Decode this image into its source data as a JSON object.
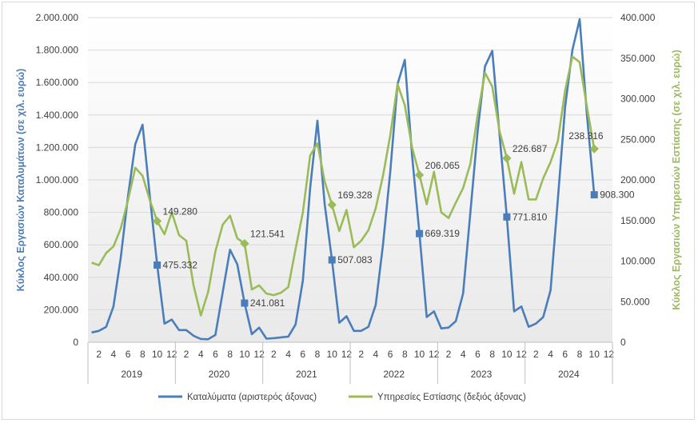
{
  "chart_data": {
    "type": "line",
    "title": "",
    "years": [
      "2019",
      "2020",
      "2021",
      "2022",
      "2023",
      "2024"
    ],
    "month_ticks": [
      "2",
      "4",
      "6",
      "8",
      "10",
      "12"
    ],
    "y_left": {
      "label": "Κύκλος Εργασιών Καταλυμάτων (σε χιλ. ευρώ)",
      "min": 0,
      "max": 2000000,
      "step": 200000,
      "ticks": [
        "0",
        "200.000",
        "400.000",
        "600.000",
        "800.000",
        "1.000.000",
        "1.200.000",
        "1.400.000",
        "1.600.000",
        "1.800.000",
        "2.000.000"
      ]
    },
    "y_right": {
      "label": "Κύκλος Εργασιών Υπηρεσιών Εστίασης (σε χιλ. ευρώ)",
      "min": 0,
      "max": 400000,
      "step": 50000,
      "ticks": [
        "0",
        "50.000",
        "100.000",
        "150.000",
        "200.000",
        "250.000",
        "300.000",
        "350.000",
        "400.000"
      ]
    },
    "gridlines": true,
    "legend_position": "bottom",
    "series": [
      {
        "name": "Καταλύματα (αριστερός άξονας)",
        "axis": "left",
        "color": "#4a7ebb",
        "values": [
          60000,
          70000,
          95000,
          220000,
          520000,
          900000,
          1220000,
          1340000,
          900000,
          475332,
          115000,
          140000,
          75000,
          75000,
          40000,
          20000,
          18000,
          45000,
          310000,
          570000,
          480000,
          241081,
          50000,
          90000,
          22000,
          25000,
          30000,
          35000,
          110000,
          380000,
          950000,
          1365000,
          850000,
          507083,
          120000,
          160000,
          70000,
          70000,
          95000,
          230000,
          600000,
          1050000,
          1590000,
          1740000,
          1150000,
          669319,
          155000,
          190000,
          85000,
          90000,
          130000,
          300000,
          800000,
          1300000,
          1700000,
          1795000,
          1280000,
          771810,
          190000,
          220000,
          95000,
          115000,
          155000,
          320000,
          880000,
          1450000,
          1800000,
          1990000,
          1400000,
          908300
        ],
        "markers": [
          {
            "month_index": 9,
            "label": "475.332"
          },
          {
            "month_index": 21,
            "label": "241.081"
          },
          {
            "month_index": 33,
            "label": "507.083"
          },
          {
            "month_index": 45,
            "label": "669.319"
          },
          {
            "month_index": 57,
            "label": "771.810"
          },
          {
            "month_index": 69,
            "label": "908.300"
          }
        ]
      },
      {
        "name": "Υπηρεσίες Εστίασης (δεξιός άξονας)",
        "axis": "right",
        "color": "#9bbb59",
        "values": [
          98000,
          95000,
          110000,
          118000,
          140000,
          175000,
          215000,
          205000,
          175000,
          149280,
          133000,
          160000,
          132000,
          125000,
          70000,
          33000,
          62000,
          112000,
          145000,
          156000,
          128000,
          121541,
          65000,
          70000,
          60000,
          58000,
          61000,
          68000,
          115000,
          160000,
          230000,
          245000,
          198000,
          169328,
          137000,
          163000,
          117000,
          125000,
          138000,
          165000,
          205000,
          255000,
          318000,
          292000,
          240000,
          206065,
          170000,
          210000,
          160000,
          153000,
          172000,
          190000,
          220000,
          280000,
          332000,
          315000,
          260000,
          226687,
          183000,
          222000,
          176000,
          176000,
          202000,
          222000,
          248000,
          310000,
          352000,
          345000,
          290000,
          238316
        ],
        "markers": [
          {
            "month_index": 9,
            "label": "149.280"
          },
          {
            "month_index": 21,
            "label": "121.541"
          },
          {
            "month_index": 33,
            "label": "169.328"
          },
          {
            "month_index": 45,
            "label": "206.065"
          },
          {
            "month_index": 57,
            "label": "226.687"
          },
          {
            "month_index": 69,
            "label": "238.316"
          }
        ]
      }
    ]
  }
}
